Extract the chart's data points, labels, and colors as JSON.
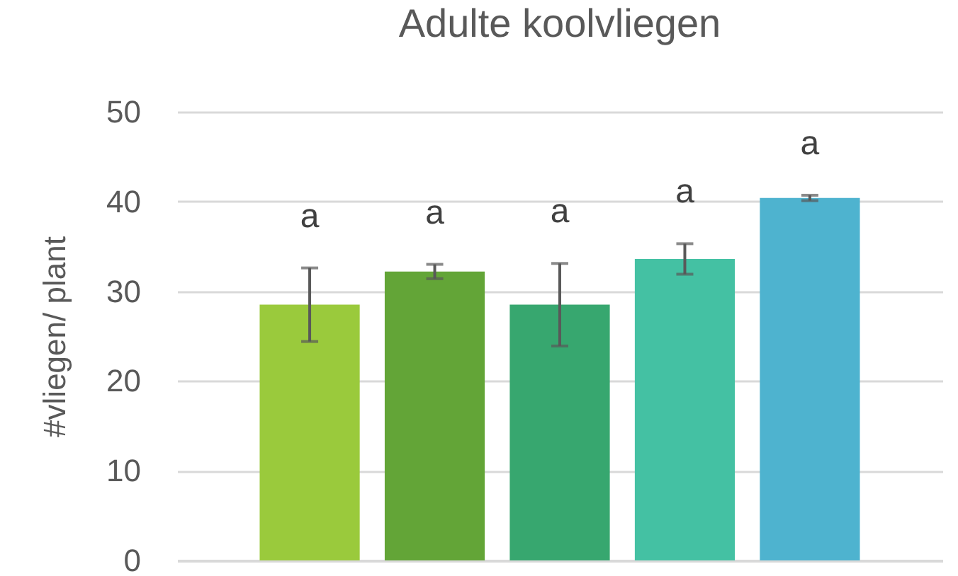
{
  "chart_data": {
    "type": "bar",
    "title": "Adulte koolvliegen",
    "ylabel": "#vliegen/ plant",
    "categories": [
      null,
      null,
      null,
      null,
      null
    ],
    "values": [
      28.5,
      32.2,
      28.5,
      33.6,
      40.4
    ],
    "errors": [
      4.1,
      0.8,
      4.6,
      1.7,
      0.3
    ],
    "colors": [
      "#9aca3c",
      "#63a537",
      "#37a76f",
      "#44c1a3",
      "#4eb3cf"
    ],
    "annotations": [
      "a",
      "a",
      "a",
      "a",
      "a"
    ],
    "ylim": [
      0,
      50
    ],
    "yticks": [
      0,
      10,
      20,
      30,
      40,
      50
    ],
    "grid": "y",
    "legend": false
  }
}
